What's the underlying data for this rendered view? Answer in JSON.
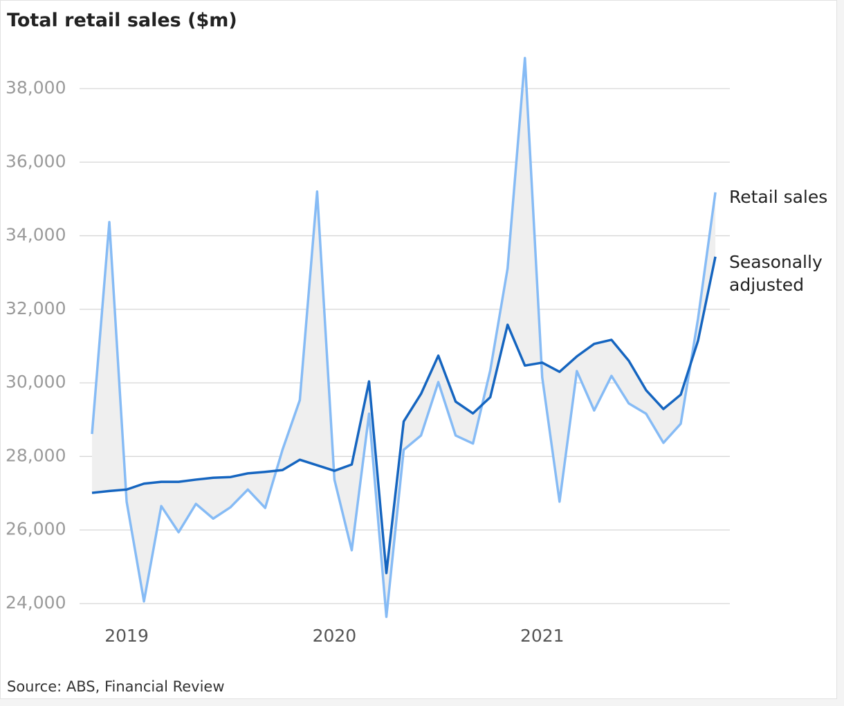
{
  "chart_data": {
    "type": "line",
    "title": "Total retail sales ($m)",
    "source": "Source: ABS, Financial Review",
    "categories": [
      null,
      null,
      "2019",
      null,
      null,
      null,
      null,
      null,
      null,
      null,
      null,
      null,
      null,
      null,
      "2020",
      null,
      null,
      null,
      null,
      null,
      null,
      null,
      null,
      null,
      null,
      null,
      "2021",
      null,
      null,
      null,
      null,
      null,
      null,
      null,
      null,
      null,
      null
    ],
    "series": [
      {
        "name": "Retail sales",
        "color": "#86bbf5",
        "values": [
          28610,
          34370,
          26770,
          24060,
          26650,
          25940,
          26710,
          26310,
          26620,
          27100,
          26600,
          28180,
          29530,
          35200,
          27370,
          25450,
          29160,
          23640,
          28180,
          28570,
          30020,
          28570,
          28350,
          30340,
          33110,
          38830,
          30150,
          26770,
          30320,
          29250,
          30190,
          29440,
          29160,
          28370,
          28890,
          31750,
          35180
        ]
      },
      {
        "name": "Seasonally adjusted",
        "color": "#1565c0",
        "values": [
          27010,
          27060,
          27100,
          27260,
          27310,
          27310,
          27370,
          27420,
          27440,
          27540,
          27580,
          27630,
          27910,
          27760,
          27610,
          27780,
          30040,
          24830,
          28950,
          29700,
          30740,
          29490,
          29170,
          29610,
          31580,
          30470,
          30550,
          30300,
          30720,
          31060,
          31170,
          30600,
          29800,
          29290,
          29680,
          31150,
          33430
        ]
      }
    ],
    "fill_between": "#efefef",
    "ylim": [
      23500,
      39300
    ],
    "yticks": [
      {
        "value": 24000,
        "label": "24,000"
      },
      {
        "value": 26000,
        "label": "26,000"
      },
      {
        "value": 28000,
        "label": "28,000"
      },
      {
        "value": 30000,
        "label": "30,000"
      },
      {
        "value": 32000,
        "label": "32,000"
      },
      {
        "value": 34000,
        "label": "34,000"
      },
      {
        "value": 36000,
        "label": "36,000"
      },
      {
        "value": 38000,
        "label": "38,000"
      }
    ],
    "grid": true
  }
}
